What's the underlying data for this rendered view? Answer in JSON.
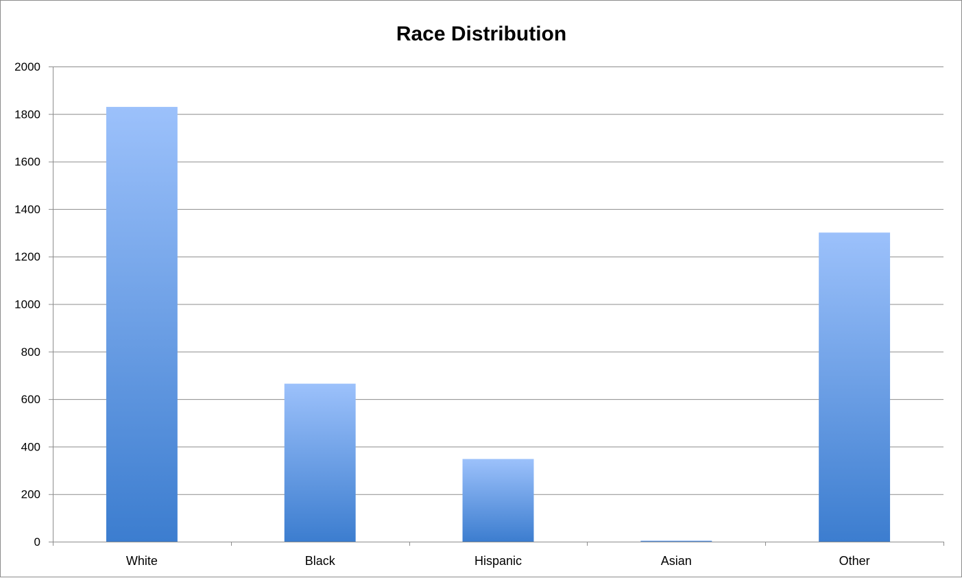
{
  "chart_data": {
    "type": "bar",
    "title": "Race Distribution",
    "xlabel": "",
    "ylabel": "",
    "categories": [
      "White",
      "Black",
      "Hispanic",
      "Asian",
      "Other"
    ],
    "values": [
      1830,
      665,
      348,
      3,
      1301
    ],
    "ylim": [
      0,
      2000
    ],
    "yticks": [
      0,
      200,
      400,
      600,
      800,
      1000,
      1200,
      1400,
      1600,
      1800,
      2000
    ],
    "grid": true,
    "legend": "none",
    "colors": {
      "bar_top": "#9cc1fb",
      "bar_bottom": "#3c7dcf",
      "grid": "#8c8c8c",
      "axis": "#8c8c8c"
    }
  }
}
